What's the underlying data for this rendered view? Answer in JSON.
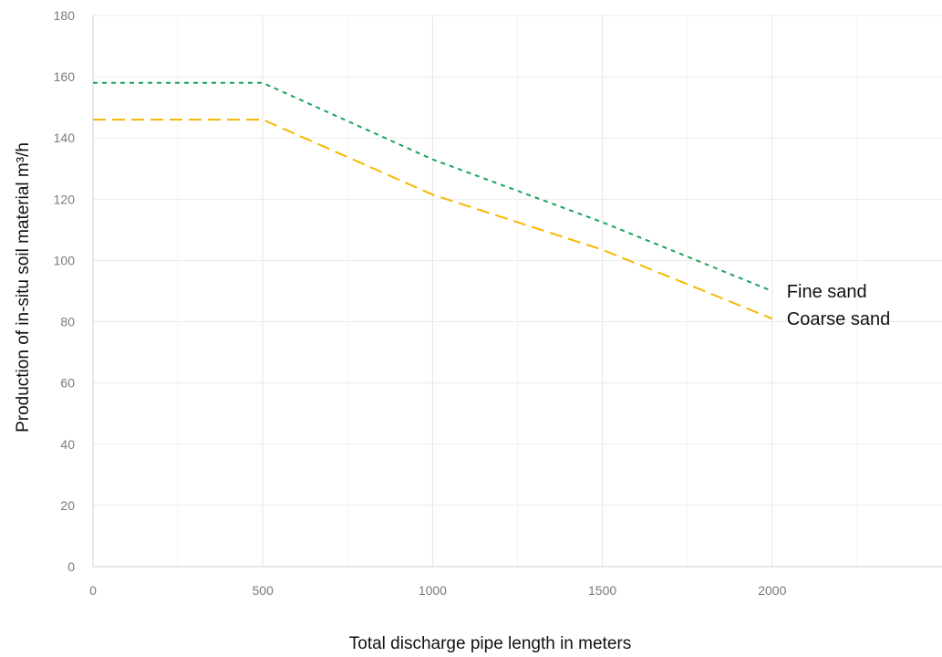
{
  "chart_data": {
    "type": "line",
    "xlabel": "Total discharge pipe length in meters",
    "ylabel": "Production of in-situ soil material m³/h",
    "xlim": [
      0,
      2500
    ],
    "ylim": [
      0,
      180
    ],
    "x_ticks": [
      0,
      500,
      1000,
      1500,
      2000
    ],
    "y_ticks": [
      0,
      20,
      40,
      60,
      80,
      100,
      120,
      140,
      160,
      180
    ],
    "x_tick_labels": [
      "0",
      "500",
      "1000",
      "1500",
      "2000"
    ],
    "y_tick_labels": [
      "0",
      "20",
      "40",
      "60",
      "80",
      "100",
      "120",
      "140",
      "160",
      "180"
    ],
    "x_minor_grid": [
      250,
      750,
      1250,
      1750,
      2250
    ],
    "grid": true,
    "legend": "inline labels at line ends",
    "series": [
      {
        "name": "Fine sand",
        "color": "#1aa35a",
        "dash": "short-dash",
        "x": [
          0,
          500,
          1000,
          1500,
          2000
        ],
        "values": [
          158,
          158,
          133,
          112.5,
          90
        ]
      },
      {
        "name": "Coarse sand",
        "color": "#f5b800",
        "dash": "long-dash",
        "x": [
          0,
          500,
          1000,
          1500,
          2000
        ],
        "values": [
          146,
          146,
          121.5,
          103.5,
          81
        ]
      }
    ]
  }
}
